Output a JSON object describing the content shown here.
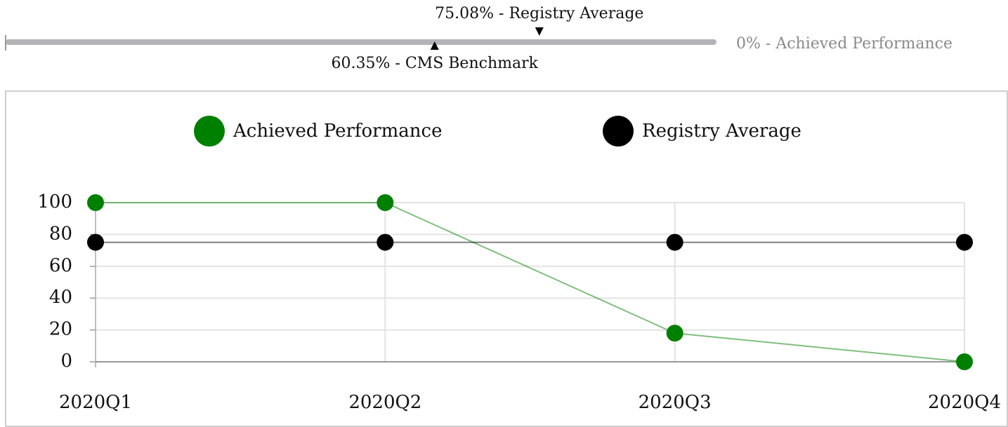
{
  "performance_bar": {
    "range": [
      0,
      100
    ],
    "markers": [
      {
        "value": 75.08,
        "label": "75.08% - Registry Average",
        "side": "top"
      },
      {
        "value": 60.35,
        "label": "60.35% - CMS Benchmark",
        "side": "bottom"
      }
    ],
    "achieved": {
      "value": 0,
      "label": "0% - Achieved Performance",
      "color": "#008000"
    }
  },
  "chart_data": {
    "type": "line",
    "categories": [
      "2020Q1",
      "2020Q2",
      "2020Q3",
      "2020Q4"
    ],
    "series": [
      {
        "name": "Achieved Performance",
        "color": "#008000",
        "values": [
          100,
          100,
          18,
          0
        ]
      },
      {
        "name": "Registry Average",
        "color": "#000000",
        "values": [
          75.08,
          75.08,
          75.08,
          75.08
        ]
      }
    ],
    "ylim": [
      0,
      100
    ],
    "yticks": [
      0,
      20,
      40,
      60,
      80,
      100
    ],
    "grid": true,
    "legend": "top"
  }
}
